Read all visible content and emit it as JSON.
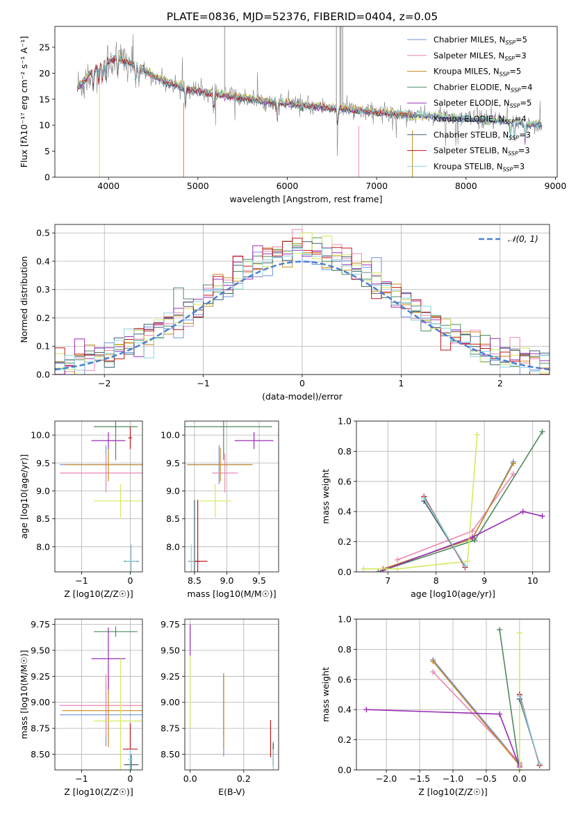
{
  "title": "PLATE=0836, MJD=52376, FIBERID=0404, z=0.05",
  "models": [
    {
      "name": "Chabrier MILES",
      "nssp": "5",
      "color": "#6f8fe0"
    },
    {
      "name": "Salpeter MILES",
      "nssp": "3",
      "color": "#ec86b5"
    },
    {
      "name": "Kroupa MILES",
      "nssp": "5",
      "color": "#c68a1d"
    },
    {
      "name": "Chabrier ELODIE",
      "nssp": "4",
      "color": "#4e8a5e"
    },
    {
      "name": "Salpeter ELODIE",
      "nssp": "5",
      "color": "#9a2bb7"
    },
    {
      "name": "Kroupa ELODIE",
      "nssp": "4",
      "color": "#d4e85c"
    },
    {
      "name": "Chabrier STELIB",
      "nssp": "3",
      "color": "#3f5d6e"
    },
    {
      "name": "Salpeter STELIB",
      "nssp": "3",
      "color": "#c0151a"
    },
    {
      "name": "Kroupa STELIB",
      "nssp": "3",
      "color": "#88d3dc"
    }
  ],
  "chart_data": [
    {
      "type": "line",
      "title": "PLATE=0836, MJD=52376, FIBERID=0404, z=0.05",
      "xlabel": "wavelength [Angstrom, rest frame]",
      "ylabel": "Flux [fλ10⁻¹⁷ erg cm⁻² s⁻¹ A⁻¹]",
      "xlim": [
        3400,
        9020
      ],
      "ylim": [
        0,
        29
      ],
      "xticks": [
        4000,
        5000,
        6000,
        7000,
        8000,
        9000
      ],
      "yticks": [
        0,
        5,
        10,
        15,
        20,
        25
      ],
      "grid": false,
      "legend": "top-right",
      "data_color": "#808080",
      "continuum_x": [
        3650,
        3800,
        3950,
        4100,
        4300,
        4500,
        4700,
        5000,
        5400,
        5800,
        6200,
        6600,
        7000,
        7400,
        7800,
        8200,
        8600,
        8850
      ],
      "continuum_y": [
        17,
        20,
        22,
        23,
        21.5,
        19.5,
        18,
        16.5,
        15.5,
        14.5,
        13.8,
        13.2,
        12.5,
        12,
        11.5,
        11,
        10.5,
        10
      ]
    },
    {
      "type": "line",
      "xlabel": "(data-model)/error",
      "ylabel": "Normed distribution",
      "xlim": [
        -2.5,
        2.5
      ],
      "ylim": [
        0,
        0.53
      ],
      "xticks": [
        -2,
        -1,
        0,
        1,
        2
      ],
      "yticks": [
        0.0,
        0.1,
        0.2,
        0.3,
        0.4,
        0.5
      ],
      "grid": true,
      "legend": "top-right",
      "reference": {
        "name": "𝒩(0, 1)",
        "color": "#4a7fd4",
        "style": "dashed"
      },
      "histogram_bins": 50
    },
    {
      "type": "scatter",
      "xlabel": "Z [log10(Z/Z☉)]",
      "ylabel": "age  [log10(age/yr)]",
      "xlim": [
        -1.55,
        0.25
      ],
      "ylim": [
        7.55,
        10.25
      ],
      "xticks": [
        -1,
        0
      ],
      "yticks": [
        8.0,
        8.5,
        9.0,
        9.5,
        10.0
      ],
      "grid": true,
      "points": [
        {
          "x": -0.5,
          "y": 9.47,
          "xerr": 0.95,
          "yerr": 0.35,
          "model": 0
        },
        {
          "x": -0.5,
          "y": 9.32,
          "xerr": 0.95,
          "yerr": 0.35,
          "model": 1
        },
        {
          "x": -0.45,
          "y": 9.47,
          "xerr": 0.9,
          "yerr": 0.3,
          "model": 2
        },
        {
          "x": -0.3,
          "y": 10.15,
          "xerr": 0.45,
          "yerr": 0.6,
          "model": 3
        },
        {
          "x": -0.45,
          "y": 9.9,
          "xerr": 0.35,
          "yerr": 0.15,
          "model": 4
        },
        {
          "x": -0.2,
          "y": 8.82,
          "xerr": 0.55,
          "yerr": 0.3,
          "model": 5
        },
        {
          "x": 0.02,
          "y": 7.74,
          "xerr": 0.15,
          "yerr": 0.3,
          "model": 6
        },
        {
          "x": 0.0,
          "y": 9.95,
          "xerr": 0.04,
          "yerr": 0.2,
          "model": 7
        },
        {
          "x": 0.02,
          "y": 7.74,
          "xerr": 0.12,
          "yerr": 0.3,
          "model": 8
        }
      ]
    },
    {
      "type": "scatter",
      "xlabel": "mass [log10(M/M☉)]",
      "ylabel": "",
      "xlim": [
        8.35,
        9.8
      ],
      "ylim": [
        7.55,
        10.25
      ],
      "xticks": [
        8.5,
        9.0,
        9.5
      ],
      "yticks": [
        8.0,
        8.5,
        9.0,
        9.5,
        10.0
      ],
      "grid": true,
      "points": [
        {
          "x": 8.88,
          "y": 9.47,
          "xerr": 0.5,
          "yerr": 0.35,
          "model": 0
        },
        {
          "x": 8.97,
          "y": 9.32,
          "xerr": 0.2,
          "yerr": 0.35,
          "model": 1
        },
        {
          "x": 8.9,
          "y": 9.47,
          "xerr": 0.5,
          "yerr": 0.3,
          "model": 2
        },
        {
          "x": 8.95,
          "y": 10.15,
          "xerr": 0.75,
          "yerr": 0.6,
          "model": 3
        },
        {
          "x": 9.42,
          "y": 9.9,
          "xerr": 0.3,
          "yerr": 0.15,
          "model": 4
        },
        {
          "x": 8.82,
          "y": 8.82,
          "xerr": 0.25,
          "yerr": 0.3,
          "model": 5
        },
        {
          "x": 8.5,
          "y": 7.74,
          "xerr": 0.08,
          "yerr": 1.1,
          "model": 6
        },
        {
          "x": 8.55,
          "y": 7.74,
          "xerr": 0.15,
          "yerr": 1.1,
          "model": 7
        },
        {
          "x": 8.45,
          "y": 7.74,
          "xerr": 0.05,
          "yerr": 0.3,
          "model": 8
        }
      ]
    },
    {
      "type": "line",
      "xlabel": "age  [log10(age/yr)]",
      "ylabel": "mass weight",
      "xlim": [
        6.35,
        10.35
      ],
      "ylim": [
        0.0,
        1.0
      ],
      "xticks": [
        7,
        8,
        9,
        10
      ],
      "yticks": [
        0.0,
        0.2,
        0.4,
        0.6,
        0.8,
        1.0
      ],
      "grid": true,
      "series": [
        {
          "model": 0,
          "x": [
            6.9,
            8.75,
            9.6
          ],
          "y": [
            0.02,
            0.22,
            0.73
          ]
        },
        {
          "model": 1,
          "x": [
            7.2,
            8.75,
            9.6
          ],
          "y": [
            0.08,
            0.27,
            0.65
          ]
        },
        {
          "model": 2,
          "x": [
            6.9,
            8.75,
            9.6
          ],
          "y": [
            0.02,
            0.22,
            0.72
          ]
        },
        {
          "model": 3,
          "x": [
            6.8,
            8.8,
            10.2
          ],
          "y": [
            0.0,
            0.21,
            0.93
          ]
        },
        {
          "model": 4,
          "x": [
            6.9,
            8.75,
            9.8,
            10.2
          ],
          "y": [
            0.01,
            0.23,
            0.4,
            0.37
          ]
        },
        {
          "model": 5,
          "x": [
            6.5,
            7.2,
            8.65,
            8.85
          ],
          "y": [
            0.02,
            0.02,
            0.07,
            0.91
          ]
        },
        {
          "model": 6,
          "x": [
            7.75,
            8.6
          ],
          "y": [
            0.47,
            0.04
          ]
        },
        {
          "model": 7,
          "x": [
            7.75,
            8.6
          ],
          "y": [
            0.5,
            0.03
          ]
        },
        {
          "model": 8,
          "x": [
            7.75,
            8.6
          ],
          "y": [
            0.49,
            0.04
          ]
        }
      ]
    },
    {
      "type": "scatter",
      "xlabel": "Z [log10(Z/Z☉)]",
      "ylabel": "mass [log10(M/M☉)]",
      "xlim": [
        -1.55,
        0.25
      ],
      "ylim": [
        8.35,
        9.8
      ],
      "xticks": [
        -1,
        0
      ],
      "yticks": [
        8.5,
        8.75,
        9.0,
        9.25,
        9.5,
        9.75
      ],
      "grid": true,
      "points": [
        {
          "x": -0.5,
          "y": 8.88,
          "xerr": 0.95,
          "yerr": 0.3,
          "model": 0
        },
        {
          "x": -0.5,
          "y": 8.97,
          "xerr": 0.95,
          "yerr": 0.3,
          "model": 1
        },
        {
          "x": -0.45,
          "y": 8.92,
          "xerr": 0.95,
          "yerr": 0.35,
          "model": 2
        },
        {
          "x": -0.3,
          "y": 9.68,
          "xerr": 0.45,
          "yerr": 0.05,
          "model": 3
        },
        {
          "x": -0.45,
          "y": 9.42,
          "xerr": 0.35,
          "yerr": 0.3,
          "model": 4
        },
        {
          "x": -0.2,
          "y": 8.82,
          "xerr": 0.55,
          "yerr": 0.6,
          "model": 5
        },
        {
          "x": 0.02,
          "y": 8.4,
          "xerr": 0.15,
          "yerr": 0.1,
          "model": 6
        },
        {
          "x": 0.0,
          "y": 8.55,
          "xerr": 0.15,
          "yerr": 0.25,
          "model": 7
        },
        {
          "x": 0.0,
          "y": 8.45,
          "xerr": 0.05,
          "yerr": 0.1,
          "model": 8
        }
      ]
    },
    {
      "type": "scatter",
      "xlabel": "E(B-V)",
      "ylabel": "",
      "xlim": [
        -0.02,
        0.33
      ],
      "ylim": [
        8.35,
        9.8
      ],
      "xticks": [
        0.0,
        0.2
      ],
      "yticks": [
        8.5,
        8.75,
        9.0,
        9.25,
        9.5,
        9.75
      ],
      "grid": true,
      "points": [
        {
          "x": 0.125,
          "y": 8.88,
          "xerr": 0,
          "yerr": 0.4,
          "model": 0
        },
        {
          "x": 0.125,
          "y": 8.97,
          "xerr": 0,
          "yerr": 0.3,
          "model": 1
        },
        {
          "x": 0.125,
          "y": 8.92,
          "xerr": 0,
          "yerr": 0.35,
          "model": 2
        },
        {
          "x": 0.31,
          "y": 8.5,
          "xerr": 0,
          "yerr": 0.12,
          "model": 3
        },
        {
          "x": 0.0,
          "y": 9.6,
          "xerr": 0,
          "yerr": 0.15,
          "model": 4
        },
        {
          "x": 0.0,
          "y": 9.1,
          "xerr": 0,
          "yerr": 0.35,
          "model": 5
        },
        {
          "x": 0.31,
          "y": 8.5,
          "xerr": 0,
          "yerr": 0.1,
          "model": 6
        },
        {
          "x": 0.3,
          "y": 8.65,
          "xerr": 0,
          "yerr": 0.18,
          "model": 7
        },
        {
          "x": 0.31,
          "y": 8.45,
          "xerr": 0,
          "yerr": 0.1,
          "model": 8
        }
      ]
    },
    {
      "type": "line",
      "xlabel": "Z [log10(Z/Z☉)]",
      "ylabel": "mass weight",
      "xlim": [
        -2.45,
        0.45
      ],
      "ylim": [
        0.0,
        1.0
      ],
      "xticks": [
        -2.0,
        -1.5,
        -1.0,
        -0.5,
        0.0
      ],
      "yticks": [
        0.0,
        0.2,
        0.4,
        0.6,
        0.8,
        1.0
      ],
      "grid": true,
      "series": [
        {
          "model": 0,
          "x": [
            -1.3,
            0.0
          ],
          "y": [
            0.73,
            0.04
          ]
        },
        {
          "model": 1,
          "x": [
            -1.3,
            0.0
          ],
          "y": [
            0.65,
            0.05
          ]
        },
        {
          "model": 2,
          "x": [
            -1.3,
            0.0
          ],
          "y": [
            0.72,
            0.03
          ]
        },
        {
          "model": 3,
          "x": [
            -0.3,
            0.0
          ],
          "y": [
            0.93,
            0.0
          ]
        },
        {
          "model": 4,
          "x": [
            -2.3,
            -0.3,
            0.0
          ],
          "y": [
            0.4,
            0.37,
            0.02
          ]
        },
        {
          "model": 5,
          "x": [
            0.0,
            0.0
          ],
          "y": [
            0.91,
            0.0
          ]
        },
        {
          "model": 6,
          "x": [
            0.0,
            0.3
          ],
          "y": [
            0.47,
            0.04
          ]
        },
        {
          "model": 7,
          "x": [
            0.0,
            0.3
          ],
          "y": [
            0.5,
            0.03
          ]
        },
        {
          "model": 8,
          "x": [
            0.0,
            0.3
          ],
          "y": [
            0.49,
            0.04
          ]
        }
      ]
    }
  ]
}
